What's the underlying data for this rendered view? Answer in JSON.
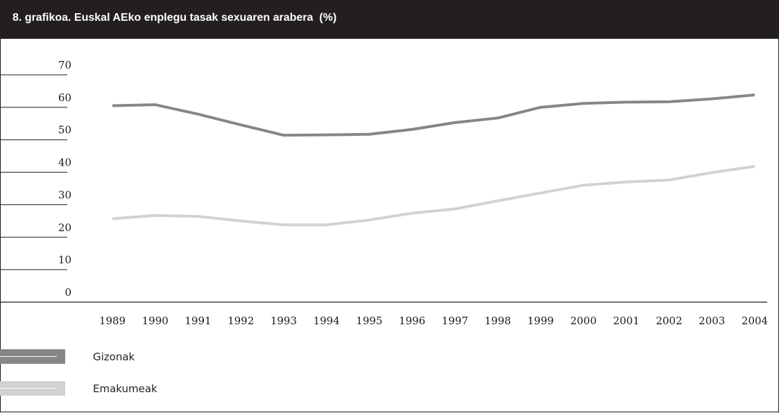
{
  "title": "8. grafikoa. Euskal AEko enplegu tasak sexuaren arabera  (%)",
  "colors": {
    "title_bg": "#231f20",
    "men": "#868686",
    "women": "#d2d2d2",
    "axis": "#1a1a1a"
  },
  "chart_data": {
    "type": "line",
    "title": "8. grafikoa. Euskal AEko enplegu tasak sexuaren arabera  (%)",
    "xlabel": "",
    "ylabel": "",
    "x": [
      "1989",
      "1990",
      "1991",
      "1992",
      "1993",
      "1994",
      "1995",
      "1996",
      "1997",
      "1998",
      "1999",
      "2000",
      "2001",
      "2002",
      "2003",
      "2004"
    ],
    "ylim": [
      0,
      70
    ],
    "yticks": [
      "0",
      "10",
      "20",
      "30",
      "40",
      "50",
      "60",
      "70"
    ],
    "grid": false,
    "legend": "bottom-left",
    "series": [
      {
        "name": "Gizonak",
        "color": "#868686",
        "values": [
          60.5,
          60.8,
          57.9,
          54.6,
          51.4,
          51.5,
          51.7,
          53.2,
          55.3,
          56.7,
          60.0,
          61.2,
          61.6,
          61.7,
          62.6,
          63.8
        ]
      },
      {
        "name": "Emakumeak",
        "color": "#d2d2d2",
        "values": [
          25.7,
          26.7,
          26.4,
          25.0,
          23.8,
          23.8,
          25.3,
          27.4,
          28.7,
          31.2,
          33.6,
          36.0,
          37.0,
          37.6,
          39.9,
          41.8
        ]
      }
    ]
  }
}
